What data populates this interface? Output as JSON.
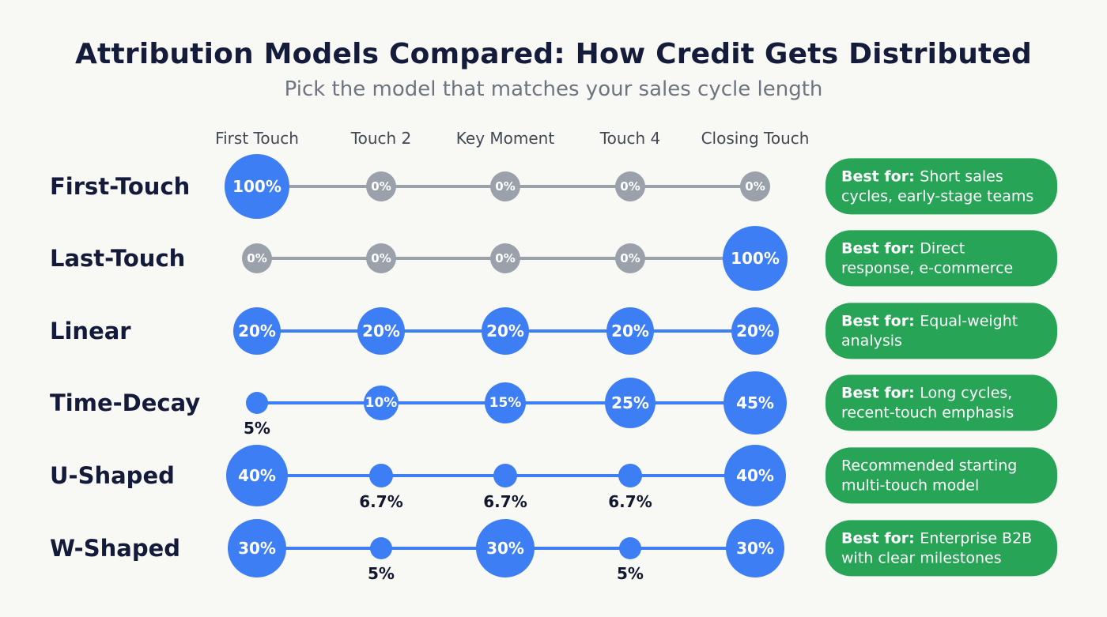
{
  "page": {
    "title": "Attribution Models Compared: How Credit Gets Distributed",
    "subtitle": "Pick the model that matches your sales cycle length"
  },
  "chart_data": {
    "type": "scatter",
    "variant": "bubble-matrix",
    "title": "Attribution Models Compared: How Credit Gets Distributed",
    "subtitle": "Pick the model that matches your sales cycle length",
    "columns": [
      "First Touch",
      "Touch 2",
      "Key Moment",
      "Touch 4",
      "Closing Touch"
    ],
    "rows": [
      {
        "model": "First-Touch",
        "values": [
          100,
          0,
          0,
          0,
          0
        ],
        "labels": [
          "100%",
          "0%",
          "0%",
          "0%",
          "0%"
        ],
        "badge": {
          "prefix": "Best for:",
          "text": "Short sales cycles, early-stage teams"
        }
      },
      {
        "model": "Last-Touch",
        "values": [
          0,
          0,
          0,
          0,
          100
        ],
        "labels": [
          "0%",
          "0%",
          "0%",
          "0%",
          "100%"
        ],
        "badge": {
          "prefix": "Best for:",
          "text": "Direct response, e-commerce"
        }
      },
      {
        "model": "Linear",
        "values": [
          20,
          20,
          20,
          20,
          20
        ],
        "labels": [
          "20%",
          "20%",
          "20%",
          "20%",
          "20%"
        ],
        "badge": {
          "prefix": "Best for:",
          "text": "Equal-weight analysis"
        }
      },
      {
        "model": "Time-Decay",
        "values": [
          5,
          10,
          15,
          25,
          45
        ],
        "labels": [
          "5%",
          "10%",
          "15%",
          "25%",
          "45%"
        ],
        "badge": {
          "prefix": "Best for:",
          "text": "Long cycles, recent-touch emphasis"
        }
      },
      {
        "model": "U-Shaped",
        "values": [
          40,
          6.7,
          6.7,
          6.7,
          40
        ],
        "labels": [
          "40%",
          "6.7%",
          "6.7%",
          "6.7%",
          "40%"
        ],
        "badge": {
          "prefix": "",
          "text": "Recommended starting multi-touch model"
        }
      },
      {
        "model": "W-Shaped",
        "values": [
          30,
          5,
          30,
          5,
          30
        ],
        "labels": [
          "30%",
          "5%",
          "30%",
          "5%",
          "30%"
        ],
        "badge": {
          "prefix": "Best for:",
          "text": "Enterprise B2B with clear milestones"
        }
      }
    ],
    "colors": {
      "active_bubble": "#3d7ef4",
      "inactive_bubble": "#9aa1ab",
      "active_line": "#3d7ef4",
      "inactive_line": "#9aa1ab",
      "badge": "#28a457",
      "heading_text": "#151c3b",
      "subtitle_text": "#6e7480",
      "background": "#f8f8f5"
    },
    "legend_position": "none",
    "grid": false
  }
}
